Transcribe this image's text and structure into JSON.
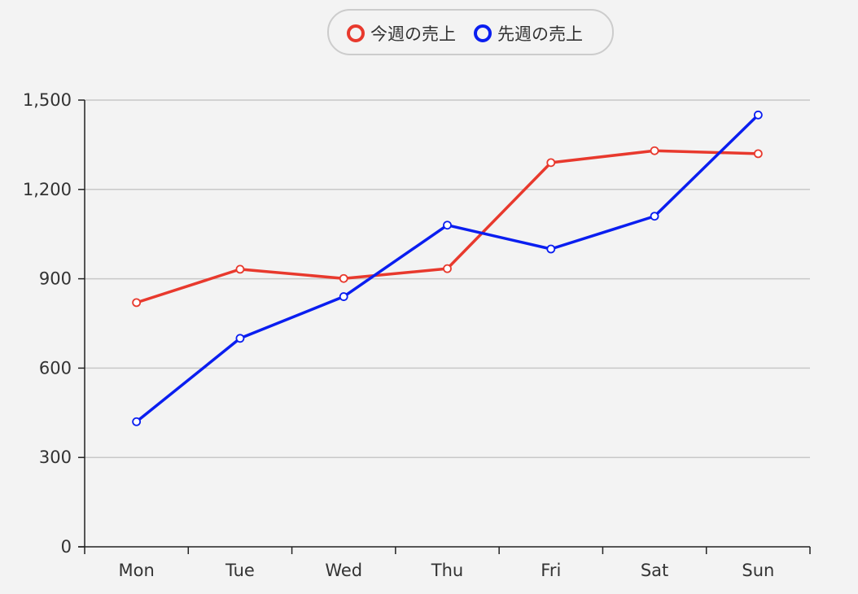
{
  "chart_data": {
    "type": "line",
    "title": "",
    "xlabel": "",
    "ylabel": "",
    "categories": [
      "Mon",
      "Tue",
      "Wed",
      "Thu",
      "Fri",
      "Sat",
      "Sun"
    ],
    "ylim": [
      0,
      1500
    ],
    "yticks": [
      0,
      300,
      600,
      900,
      1200,
      1500
    ],
    "ytick_labels": [
      "0",
      "300",
      "600",
      "900",
      "1,200",
      "1,500"
    ],
    "grid": true,
    "legend_position": "top-center",
    "series": [
      {
        "name": "今週の売上",
        "color": "#e8392d",
        "values": [
          820,
          932,
          901,
          934,
          1290,
          1330,
          1320
        ]
      },
      {
        "name": "先週の売上",
        "color": "#0a1ef0",
        "values": [
          420,
          700,
          840,
          1080,
          1000,
          1110,
          1450
        ]
      }
    ]
  }
}
